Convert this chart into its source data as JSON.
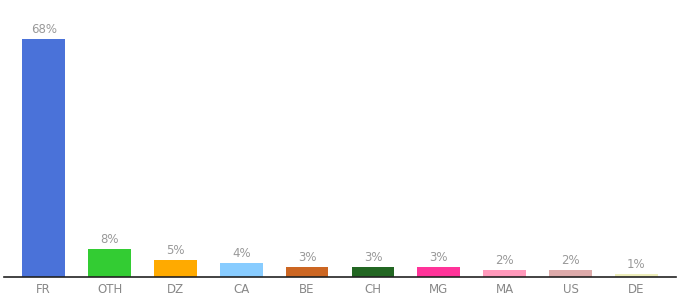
{
  "categories": [
    "FR",
    "OTH",
    "DZ",
    "CA",
    "BE",
    "CH",
    "MG",
    "MA",
    "US",
    "DE"
  ],
  "values": [
    68,
    8,
    5,
    4,
    3,
    3,
    3,
    2,
    2,
    1
  ],
  "bar_colors": [
    "#4a72d9",
    "#33cc33",
    "#ffaa00",
    "#88ccff",
    "#cc6622",
    "#226622",
    "#ff3399",
    "#ff99bb",
    "#ddaaaa",
    "#eeeebb"
  ],
  "label_fontsize": 8.5,
  "tick_fontsize": 8.5,
  "label_color": "#999999",
  "tick_color": "#888888",
  "ylim": [
    0,
    78
  ],
  "bar_width": 0.65,
  "background_color": "#ffffff"
}
